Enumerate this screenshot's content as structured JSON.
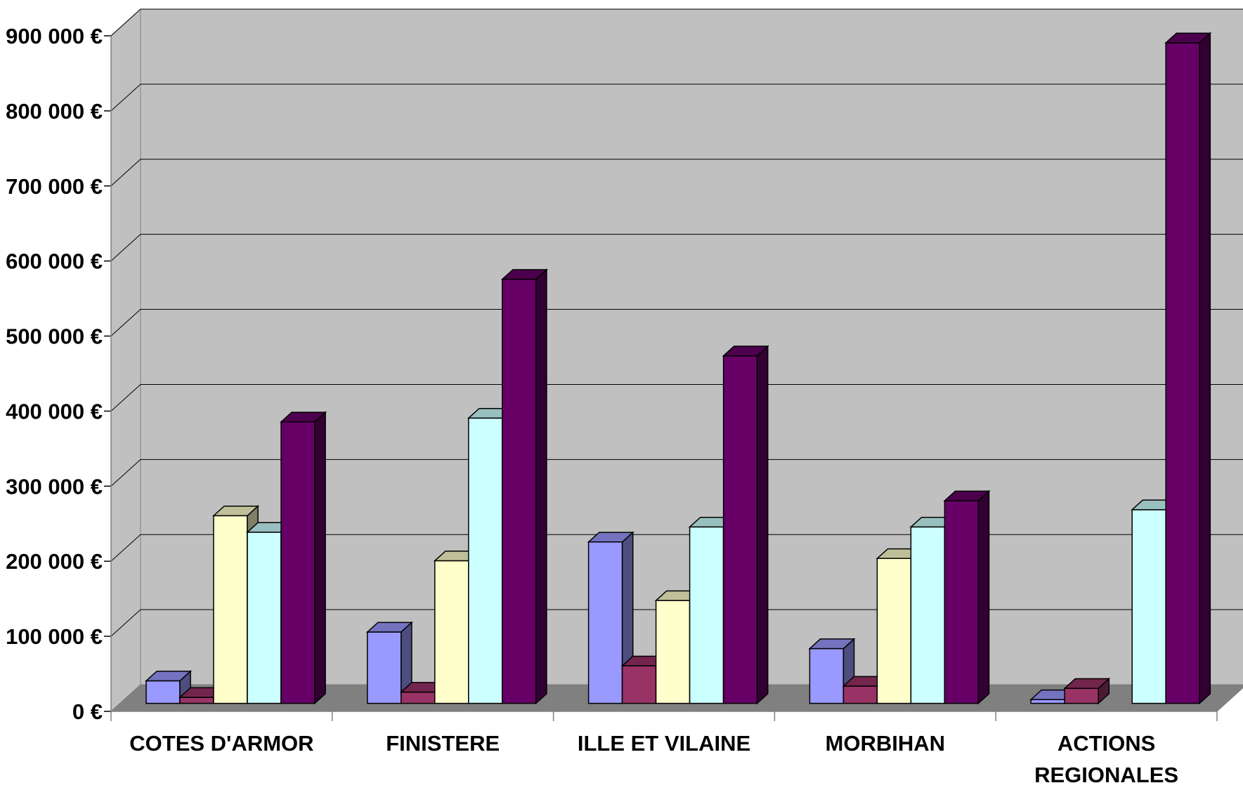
{
  "chart_data": {
    "type": "bar",
    "style": "3d-clustered-column",
    "title": "",
    "xlabel": "",
    "ylabel": "",
    "ylim": [
      0,
      900000
    ],
    "y_ticks": [
      0,
      100000,
      200000,
      300000,
      400000,
      500000,
      600000,
      700000,
      800000,
      900000
    ],
    "y_tick_labels": [
      "0 €",
      "100 000 €",
      "200 000 €",
      "300 000 €",
      "400 000 €",
      "500 000 €",
      "600 000 €",
      "700 000 €",
      "800 000 €",
      "900 000 €"
    ],
    "grid": true,
    "legend": "none",
    "categories": [
      [
        "COTES D'ARMOR"
      ],
      [
        "FINISTERE"
      ],
      [
        "ILLE ET VILAINE"
      ],
      [
        "MORBIHAN"
      ],
      [
        "ACTIONS",
        "REGIONALES"
      ]
    ],
    "series": [
      {
        "color": "#9999ff",
        "values": [
          30000,
          95000,
          215000,
          73000,
          5000
        ]
      },
      {
        "color": "#993366",
        "values": [
          8000,
          15000,
          50000,
          23000,
          20000
        ]
      },
      {
        "color": "#ffffcc",
        "values": [
          250000,
          190000,
          137000,
          193000,
          0
        ]
      },
      {
        "color": "#ccffff",
        "values": [
          228000,
          380000,
          235000,
          235000,
          258000
        ]
      },
      {
        "color": "#660066",
        "values": [
          375000,
          565000,
          463000,
          270000,
          880000
        ]
      }
    ],
    "colors": {
      "wall": "#c0c0c0",
      "floor": "#808080",
      "gridline": "#000000",
      "bar_edge": "#000000"
    }
  }
}
